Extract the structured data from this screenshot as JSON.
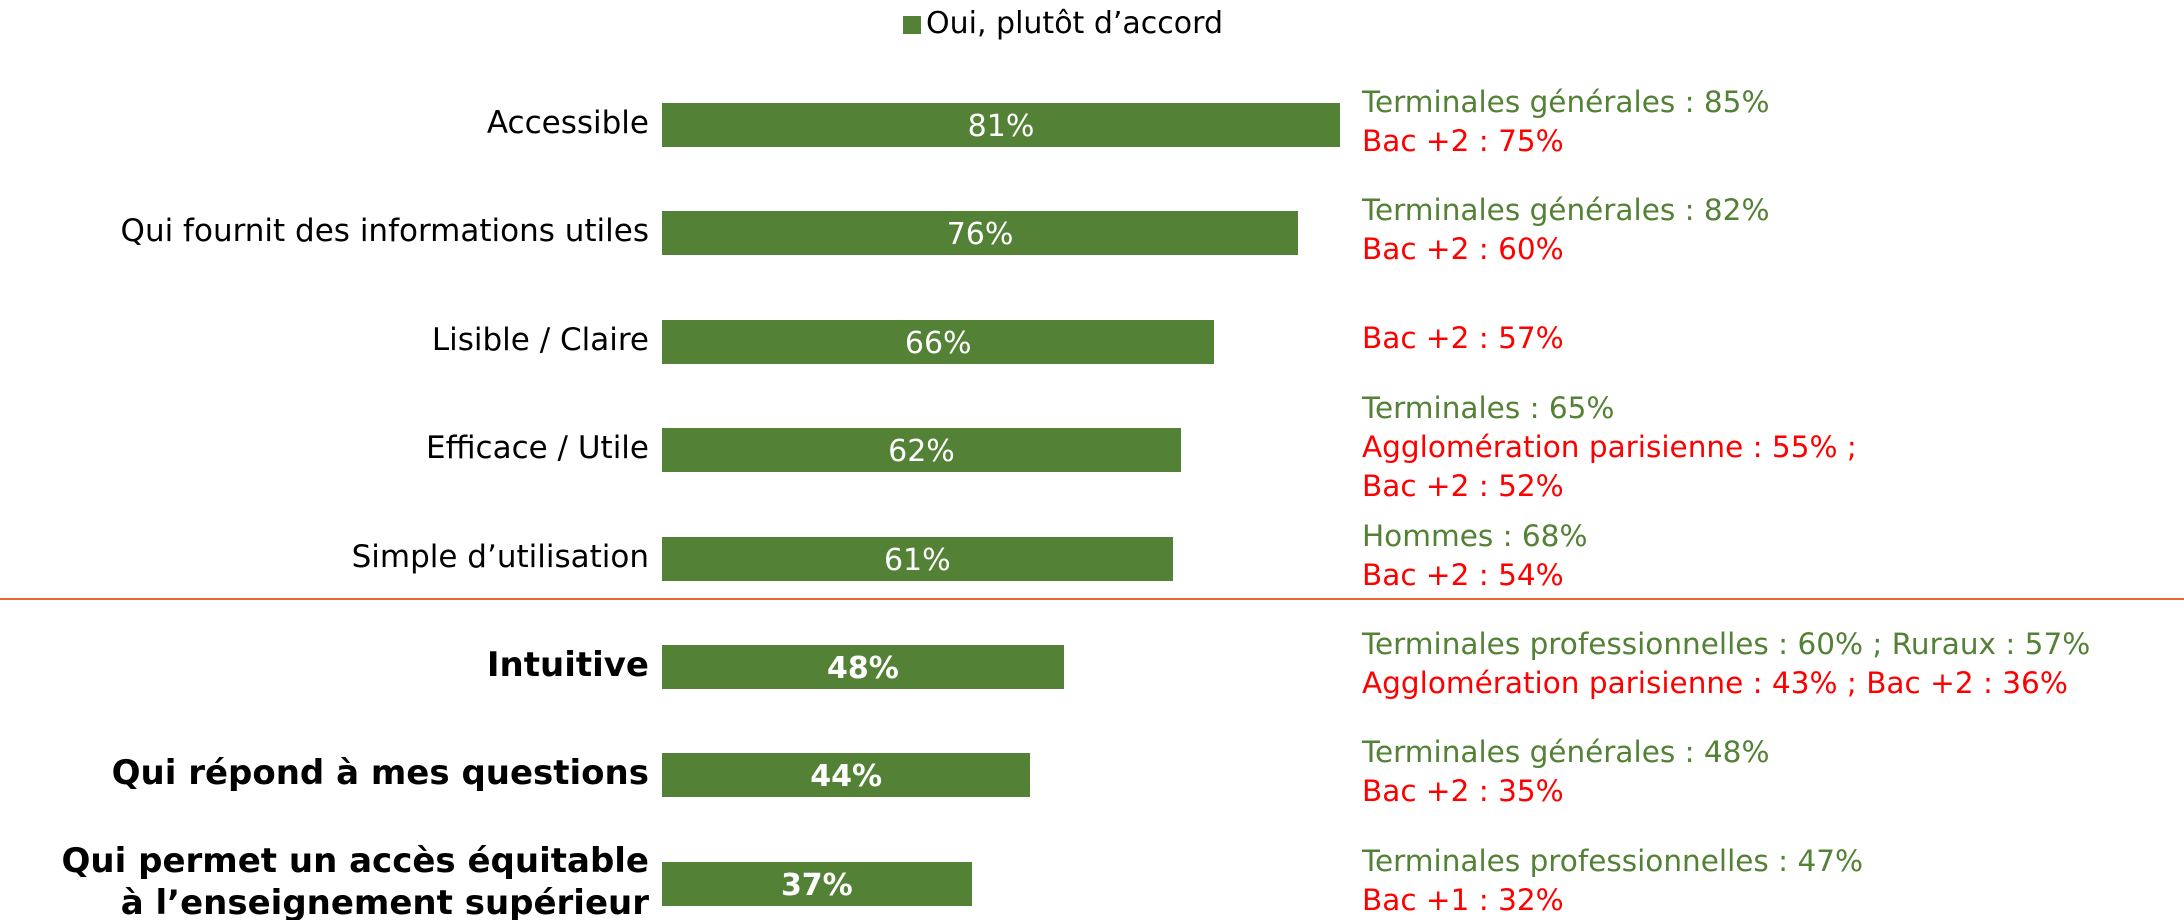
{
  "chart_data": {
    "type": "hbar",
    "legend": {
      "name": "Oui, plutôt d’accord",
      "color": "#538135"
    },
    "categories": [
      "Accessible",
      "Qui fournit des informations utiles",
      "Lisible / Claire",
      "Efficace / Utile",
      "Simple d’utilisation",
      "Intuitive",
      "Qui répond à mes questions",
      "Qui permet un accès équitable\nà l’enseignement supérieur"
    ],
    "values": [
      81,
      76,
      66,
      62,
      61,
      48,
      44,
      37
    ],
    "value_labels": [
      "81%",
      "76%",
      "66%",
      "62%",
      "61%",
      "48%",
      "44%",
      "37%"
    ],
    "bold": [
      false,
      false,
      false,
      false,
      false,
      true,
      true,
      true
    ],
    "color": "#538135",
    "separator_color": "#e8692e",
    "annotations": [
      [
        {
          "text": "Terminales générales : 85%",
          "color": "#538135"
        },
        {
          "text": "Bac +2 : 75%",
          "color": "#ff0000"
        }
      ],
      [
        {
          "text": "Terminales générales : 82%",
          "color": "#538135"
        },
        {
          "text": "Bac +2 : 60%",
          "color": "#ff0000"
        }
      ],
      [
        {
          "text": "Bac +2 : 57%",
          "color": "#ff0000"
        }
      ],
      [
        {
          "text": "Terminales : 65%",
          "color": "#538135"
        },
        {
          "text": "Agglomération parisienne : 55% ;",
          "color": "#ff0000"
        },
        {
          "text": "Bac +2 : 52%",
          "color": "#ff0000"
        }
      ],
      [
        {
          "text": "Hommes : 68%",
          "color": "#538135"
        },
        {
          "text": "Bac +2 : 54%",
          "color": "#ff0000"
        }
      ],
      [
        {
          "text": "Terminales professionnelles : 60% ; Ruraux : 57%",
          "color": "#538135"
        },
        {
          "text": "Agglomération parisienne : 43% ; Bac +2 : 36%",
          "color": "#ff0000"
        }
      ],
      [
        {
          "text": "Terminales générales : 48%",
          "color": "#538135"
        },
        {
          "text": "Bac +2 : 35%",
          "color": "#ff0000"
        }
      ],
      [
        {
          "text": "Terminales professionnelles : 47%",
          "color": "#538135"
        },
        {
          "text": "Bac +1 : 32%",
          "color": "#ff0000"
        }
      ]
    ]
  }
}
